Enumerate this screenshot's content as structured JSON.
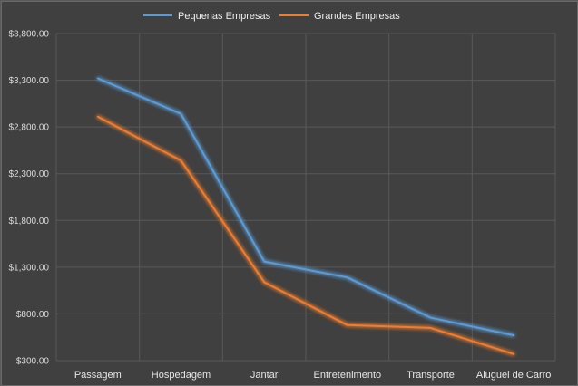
{
  "chart_data": {
    "type": "line",
    "title": "",
    "xlabel": "",
    "ylabel": "",
    "categories": [
      "Passagem",
      "Hospedagem",
      "Jantar",
      "Entretenimento",
      "Transporte",
      "Aluguel de Carro"
    ],
    "series": [
      {
        "name": "Pequenas Empresas",
        "color": "#5b9bd5",
        "values": [
          3320,
          2940,
          1360,
          1190,
          760,
          570
        ]
      },
      {
        "name": "Grandes Empresas",
        "color": "#ed7d31",
        "values": [
          2910,
          2440,
          1140,
          680,
          650,
          370
        ]
      }
    ],
    "ylim": [
      300,
      3800
    ],
    "yticks": [
      300,
      800,
      1300,
      1800,
      2300,
      2800,
      3300,
      3800
    ],
    "ytick_labels": [
      "$300.00",
      "$800.00",
      "$1,300.00",
      "$1,800.00",
      "$2,300.00",
      "$2,800.00",
      "$3,300.00",
      "$3,800.00"
    ],
    "grid": true,
    "legend_position": "top"
  }
}
